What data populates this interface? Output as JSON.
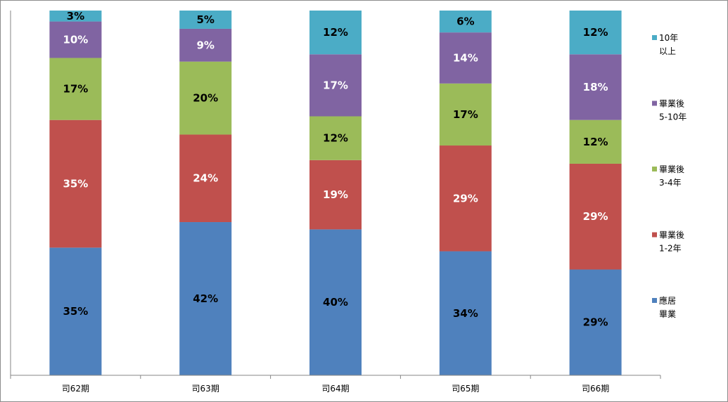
{
  "chart_data": {
    "type": "bar",
    "stacked": true,
    "percent": true,
    "categories": [
      "司62期",
      "司63期",
      "司64期",
      "司65期",
      "司66期"
    ],
    "series": [
      {
        "name": [
          "應居",
          "畢業"
        ],
        "color": "#4f81bd",
        "values": [
          35,
          42,
          40,
          34,
          29
        ],
        "labels": [
          "35%",
          "42%",
          "40%",
          "34%",
          "29%"
        ],
        "label_color": "#000000"
      },
      {
        "name": [
          "畢業後",
          "1-2年"
        ],
        "color": "#c0504d",
        "values": [
          35,
          24,
          19,
          29,
          29
        ],
        "labels": [
          "35%",
          "24%",
          "19%",
          "29%",
          "29%"
        ],
        "label_color": "#ffffff"
      },
      {
        "name": [
          "畢業後",
          "3-4年"
        ],
        "color": "#9bbb59",
        "values": [
          17,
          20,
          12,
          17,
          12
        ],
        "labels": [
          "17%",
          "20%",
          "12%",
          "17%",
          "12%"
        ],
        "label_color": "#000000"
      },
      {
        "name": [
          "畢業後",
          "5-10年"
        ],
        "color": "#8064a2",
        "values": [
          10,
          9,
          17,
          14,
          18
        ],
        "labels": [
          "10%",
          "9%",
          "17%",
          "14%",
          "18%"
        ],
        "label_color": "#ffffff"
      },
      {
        "name": [
          "10年",
          "以上"
        ],
        "color": "#4bacc6",
        "values": [
          3,
          5,
          12,
          6,
          12
        ],
        "labels": [
          "3%",
          "5%",
          "12%",
          "6%",
          "12%"
        ],
        "label_color": "#000000"
      }
    ],
    "ylim": [
      0,
      100
    ],
    "grid": false,
    "legend_position": "right"
  }
}
